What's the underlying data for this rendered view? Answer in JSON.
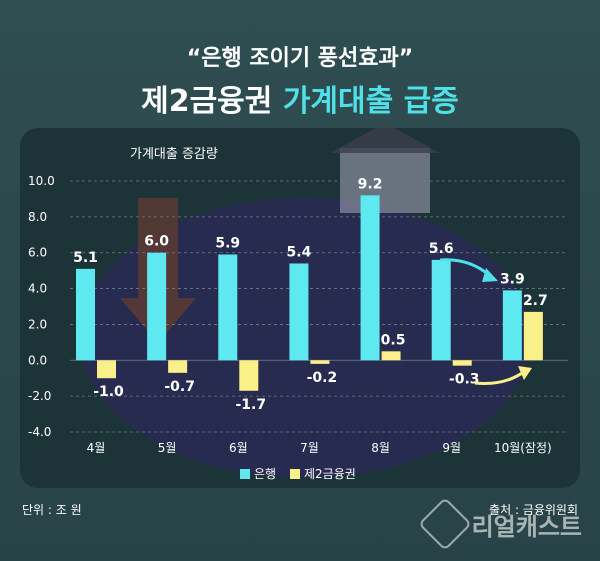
{
  "headline": "“은행 조이기 풍선효과”",
  "subtitle_main": "제2금융권 ",
  "subtitle_highlight": "가계대출 급증",
  "unit_label": "단위 : 조 원",
  "source_label": "출처 : 금융위원회",
  "watermark": "리얼캐스트",
  "colors": {
    "bank": "#5ee8f0",
    "second": "#f9f08a",
    "highlight": "#4fe0e8"
  },
  "chart_data": {
    "type": "bar",
    "title": "가계대출 증감량",
    "categories": [
      "4월",
      "5월",
      "6월",
      "7월",
      "8월",
      "9월",
      "10월(잠정)"
    ],
    "series": [
      {
        "name": "은행",
        "values": [
          5.1,
          6.0,
          5.9,
          5.4,
          9.2,
          5.6,
          3.9
        ],
        "labels": [
          "5.1",
          "6.0",
          "5.9",
          "5.4",
          "9.2",
          "5.6",
          "3.9"
        ]
      },
      {
        "name": "제2금융권",
        "values": [
          -1.0,
          -0.7,
          -1.7,
          -0.2,
          0.5,
          -0.3,
          2.7
        ],
        "labels": [
          "-1.0",
          "-0.7",
          "-1.7",
          "-0.2",
          "0.5",
          "-0.3",
          "2.7"
        ]
      }
    ],
    "yticks": [
      "10.0",
      "8.0",
      "6.0",
      "4.0",
      "2.0",
      "0.0",
      "-2.0",
      "-4.0"
    ],
    "ylim": [
      -4,
      10
    ],
    "grid": true,
    "legend": "bottom"
  }
}
